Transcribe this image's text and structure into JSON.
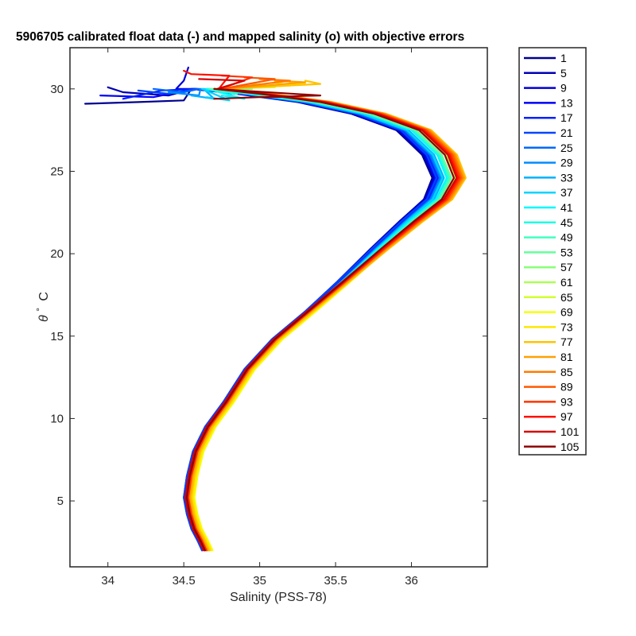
{
  "chart_data": {
    "type": "line",
    "title": "5906705 calibrated float data (-) and mapped salinity (o) with objective errors",
    "xlabel": "Salinity (PSS-78)",
    "ylabel_symbol": "θ",
    "ylabel_degree": "°",
    "ylabel_unit": "C",
    "xlim": [
      33.75,
      36.5
    ],
    "ylim": [
      1,
      32.5
    ],
    "x_ticks": [
      34,
      34.5,
      35,
      35.5,
      36
    ],
    "x_tick_labels": [
      "34",
      "34.5",
      "35",
      "35.5",
      "36"
    ],
    "y_ticks": [
      5,
      10,
      15,
      20,
      25,
      30
    ],
    "y_tick_labels": [
      "5",
      "10",
      "15",
      "20",
      "25",
      "30"
    ],
    "grid": false,
    "legend_position": "outside-right",
    "colormap": "jet",
    "legend": [
      {
        "label": "1",
        "color": "#00008f"
      },
      {
        "label": "5",
        "color": "#0000b3"
      },
      {
        "label": "9",
        "color": "#0000d7"
      },
      {
        "label": "13",
        "color": "#0000fb"
      },
      {
        "label": "17",
        "color": "#0020ff"
      },
      {
        "label": "21",
        "color": "#0044ff"
      },
      {
        "label": "25",
        "color": "#0068ff"
      },
      {
        "label": "29",
        "color": "#008cff"
      },
      {
        "label": "33",
        "color": "#00b0ff"
      },
      {
        "label": "37",
        "color": "#00d4ff"
      },
      {
        "label": "41",
        "color": "#00f8ff"
      },
      {
        "label": "45",
        "color": "#1cffe3"
      },
      {
        "label": "49",
        "color": "#40ffbf"
      },
      {
        "label": "53",
        "color": "#64ff9b"
      },
      {
        "label": "57",
        "color": "#88ff77"
      },
      {
        "label": "61",
        "color": "#acff53"
      },
      {
        "label": "65",
        "color": "#d0ff2f"
      },
      {
        "label": "69",
        "color": "#f4ff0b"
      },
      {
        "label": "73",
        "color": "#ffe700"
      },
      {
        "label": "77",
        "color": "#ffc300"
      },
      {
        "label": "81",
        "color": "#ff9f00"
      },
      {
        "label": "85",
        "color": "#ff7b00"
      },
      {
        "label": "89",
        "color": "#ff5700"
      },
      {
        "label": "93",
        "color": "#ff3300"
      },
      {
        "label": "97",
        "color": "#ff0f00"
      },
      {
        "label": "101",
        "color": "#d70000"
      },
      {
        "label": "105",
        "color": "#8f0000"
      }
    ],
    "profile_shape": [
      [
        34.64,
        2.0
      ],
      [
        34.61,
        2.6
      ],
      [
        34.57,
        3.3
      ],
      [
        34.54,
        4.2
      ],
      [
        34.52,
        5.2
      ],
      [
        34.54,
        6.5
      ],
      [
        34.58,
        8.0
      ],
      [
        34.66,
        9.5
      ],
      [
        34.78,
        11.0
      ],
      [
        34.92,
        13.0
      ],
      [
        35.1,
        14.8
      ],
      [
        35.32,
        16.5
      ],
      [
        35.55,
        18.3
      ],
      [
        35.8,
        20.3
      ],
      [
        36.02,
        22.0
      ],
      [
        36.2,
        23.3
      ],
      [
        36.28,
        24.6
      ],
      [
        36.22,
        26.0
      ],
      [
        36.05,
        27.5
      ],
      [
        35.75,
        28.5
      ],
      [
        35.4,
        29.2
      ],
      [
        35.0,
        29.7
      ],
      [
        34.7,
        30.0
      ]
    ],
    "series": [
      {
        "profile": 1,
        "color": "#00008f",
        "deep_offset": 0.0,
        "peak_offset": -0.15,
        "surface_tail": [
          [
            34.5,
            29.3
          ],
          [
            34.2,
            29.2
          ],
          [
            33.85,
            29.1
          ]
        ]
      },
      {
        "profile": 5,
        "color": "#0000b3",
        "deep_offset": -0.02,
        "peak_offset": -0.14,
        "surface_tail": [
          [
            34.4,
            29.6
          ],
          [
            34.1,
            29.8
          ],
          [
            34.0,
            30.1
          ]
        ]
      },
      {
        "profile": 9,
        "color": "#0000d7",
        "deep_offset": 0.01,
        "peak_offset": -0.12,
        "surface_tail": [
          [
            34.45,
            30.0
          ],
          [
            34.5,
            30.5
          ],
          [
            34.53,
            31.3
          ]
        ]
      },
      {
        "profile": 13,
        "color": "#0000fb",
        "deep_offset": -0.01,
        "peak_offset": -0.13,
        "surface_tail": [
          [
            34.3,
            29.5
          ],
          [
            33.95,
            29.6
          ]
        ]
      },
      {
        "profile": 17,
        "color": "#0020ff",
        "deep_offset": 0.0,
        "peak_offset": -0.11,
        "surface_tail": [
          [
            34.35,
            29.9
          ],
          [
            34.1,
            29.4
          ]
        ]
      },
      {
        "profile": 21,
        "color": "#0044ff",
        "deep_offset": -0.02,
        "peak_offset": -0.12,
        "surface_tail": [
          [
            34.4,
            29.7
          ],
          [
            34.2,
            29.9
          ]
        ]
      },
      {
        "profile": 25,
        "color": "#0068ff",
        "deep_offset": 0.01,
        "peak_offset": -0.1,
        "surface_tail": [
          [
            34.5,
            29.8
          ],
          [
            34.3,
            30.0
          ]
        ]
      },
      {
        "profile": 29,
        "color": "#008cff",
        "deep_offset": 0.0,
        "peak_offset": -0.09,
        "surface_tail": [
          [
            34.6,
            29.6
          ],
          [
            34.4,
            29.8
          ]
        ]
      },
      {
        "profile": 33,
        "color": "#00b0ff",
        "deep_offset": 0.02,
        "peak_offset": -0.07,
        "surface_tail": [
          [
            34.7,
            29.4
          ],
          [
            34.55,
            29.6
          ]
        ]
      },
      {
        "profile": 37,
        "color": "#00d4ff",
        "deep_offset": 0.01,
        "peak_offset": -0.08,
        "surface_tail": [
          [
            34.8,
            29.3
          ],
          [
            34.65,
            29.5
          ]
        ]
      },
      {
        "profile": 41,
        "color": "#00f8ff",
        "deep_offset": 0.0,
        "peak_offset": -0.05,
        "surface_tail": [
          [
            34.9,
            29.4
          ],
          [
            34.75,
            29.6
          ]
        ]
      },
      {
        "profile": 45,
        "color": "#1cffe3",
        "deep_offset": 0.02,
        "peak_offset": -0.04,
        "surface_tail": [
          [
            34.85,
            29.7
          ],
          [
            34.7,
            29.9
          ]
        ]
      },
      {
        "profile": 49,
        "color": "#40ffbf",
        "deep_offset": 0.01,
        "peak_offset": -0.03,
        "surface_tail": [
          [
            34.9,
            29.9
          ],
          [
            34.8,
            30.1
          ]
        ]
      },
      {
        "profile": 53,
        "color": "#64ff9b",
        "deep_offset": 0.03,
        "peak_offset": -0.02,
        "surface_tail": [
          [
            34.95,
            30.0
          ],
          [
            34.85,
            30.2
          ]
        ]
      },
      {
        "profile": 57,
        "color": "#88ff77",
        "deep_offset": 0.02,
        "peak_offset": 0.0,
        "surface_tail": [
          [
            35.0,
            30.1
          ],
          [
            34.9,
            30.2
          ]
        ]
      },
      {
        "profile": 61,
        "color": "#acff53",
        "deep_offset": 0.03,
        "peak_offset": 0.01,
        "surface_tail": [
          [
            35.05,
            30.2
          ],
          [
            34.95,
            30.3
          ]
        ]
      },
      {
        "profile": 65,
        "color": "#d0ff2f",
        "deep_offset": 0.04,
        "peak_offset": 0.02,
        "surface_tail": [
          [
            35.1,
            30.1
          ],
          [
            35.0,
            30.3
          ]
        ]
      },
      {
        "profile": 69,
        "color": "#f4ff0b",
        "deep_offset": 0.05,
        "peak_offset": 0.03,
        "surface_tail": [
          [
            35.2,
            30.2
          ],
          [
            35.1,
            30.4
          ]
        ]
      },
      {
        "profile": 73,
        "color": "#ffe700",
        "deep_offset": 0.04,
        "peak_offset": 0.05,
        "surface_tail": [
          [
            35.3,
            30.3
          ],
          [
            35.2,
            30.4
          ]
        ]
      },
      {
        "profile": 77,
        "color": "#ffc300",
        "deep_offset": 0.03,
        "peak_offset": 0.08,
        "surface_tail": [
          [
            35.4,
            30.3
          ],
          [
            35.3,
            30.5
          ]
        ]
      },
      {
        "profile": 81,
        "color": "#ff9f00",
        "deep_offset": 0.02,
        "peak_offset": 0.07,
        "surface_tail": [
          [
            35.3,
            30.4
          ],
          [
            35.1,
            30.5
          ]
        ]
      },
      {
        "profile": 85,
        "color": "#ff7b00",
        "deep_offset": 0.01,
        "peak_offset": 0.06,
        "surface_tail": [
          [
            35.2,
            30.5
          ],
          [
            35.0,
            30.6
          ]
        ]
      },
      {
        "profile": 89,
        "color": "#ff5700",
        "deep_offset": 0.0,
        "peak_offset": 0.05,
        "surface_tail": [
          [
            35.1,
            30.6
          ],
          [
            34.9,
            30.7
          ]
        ]
      },
      {
        "profile": 93,
        "color": "#ff3300",
        "deep_offset": 0.01,
        "peak_offset": 0.04,
        "surface_tail": [
          [
            34.95,
            30.7
          ],
          [
            34.75,
            30.8
          ]
        ]
      },
      {
        "profile": 97,
        "color": "#ff0f00",
        "deep_offset": 0.0,
        "peak_offset": 0.03,
        "surface_tail": [
          [
            34.8,
            30.8
          ],
          [
            34.55,
            30.9
          ],
          [
            34.5,
            31.1
          ]
        ]
      },
      {
        "profile": 101,
        "color": "#d70000",
        "deep_offset": -0.01,
        "peak_offset": 0.02,
        "surface_tail": [
          [
            34.9,
            30.5
          ],
          [
            34.6,
            30.6
          ]
        ]
      },
      {
        "profile": 105,
        "color": "#8f0000",
        "deep_offset": 0.0,
        "peak_offset": 0.0,
        "surface_tail": [
          [
            35.4,
            29.6
          ],
          [
            35.0,
            29.5
          ],
          [
            34.7,
            29.4
          ]
        ]
      }
    ]
  }
}
